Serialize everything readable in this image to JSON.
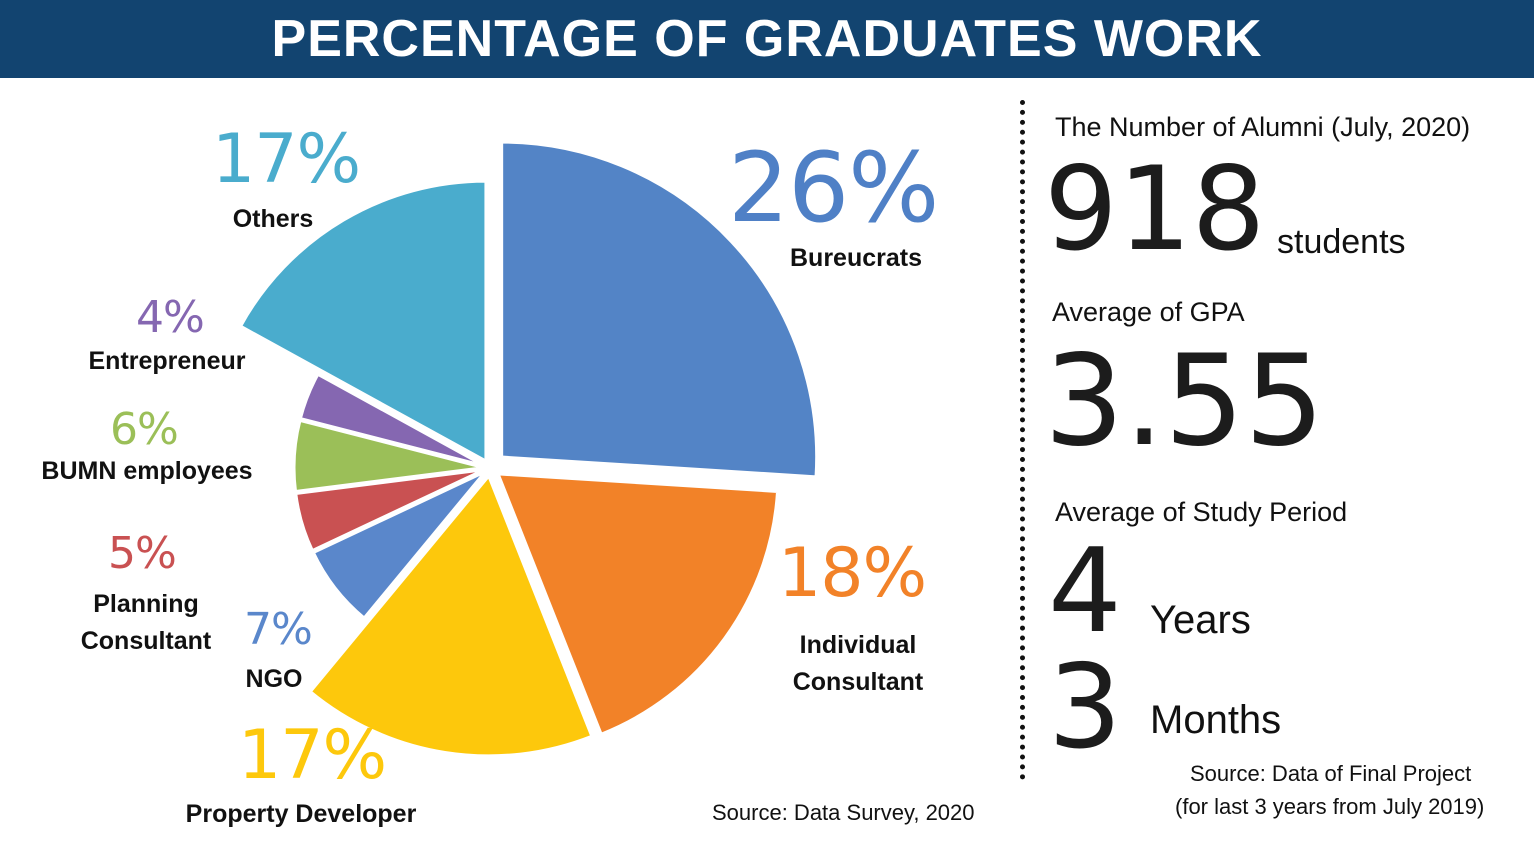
{
  "title": "PERCENTAGE OF GRADUATES WORK",
  "chart_data": {
    "type": "pie",
    "slices": [
      {
        "label": "Bureucrats",
        "percent_label": "26%",
        "value": 26,
        "color": "#5384C6"
      },
      {
        "label": "Individual Consultant",
        "percent_label": "18%",
        "value": 18,
        "color": "#F28228"
      },
      {
        "label": "Property Developer",
        "percent_label": "17%",
        "value": 17,
        "color": "#FDC80C"
      },
      {
        "label": "NGO",
        "percent_label": "7%",
        "value": 7,
        "color": "#5A87CB"
      },
      {
        "label": "Planning Consultant",
        "percent_label": "5%",
        "value": 5,
        "color": "#C95152"
      },
      {
        "label": "BUMN employees",
        "percent_label": "6%",
        "value": 6,
        "color": "#9BBF58"
      },
      {
        "label": "Entrepreneur",
        "percent_label": "4%",
        "value": 4,
        "color": "#8567B1"
      },
      {
        "label": "Others",
        "percent_label": "17%",
        "value": 17,
        "color": "#4AACCD"
      }
    ],
    "source": "Source: Data Survey, 2020"
  },
  "stats": {
    "alumni_label": "The Number of Alumni (July, 2020)",
    "alumni_value": "918",
    "alumni_unit": "students",
    "gpa_label": "Average of GPA",
    "gpa_value": "3.55",
    "study_label": "Average of Study Period",
    "years_value": "4",
    "years_unit": "Years",
    "months_value": "3",
    "months_unit": "Months",
    "source_line1": "Source: Data of Final Project",
    "source_line2": "(for last 3 years from July 2019)"
  }
}
